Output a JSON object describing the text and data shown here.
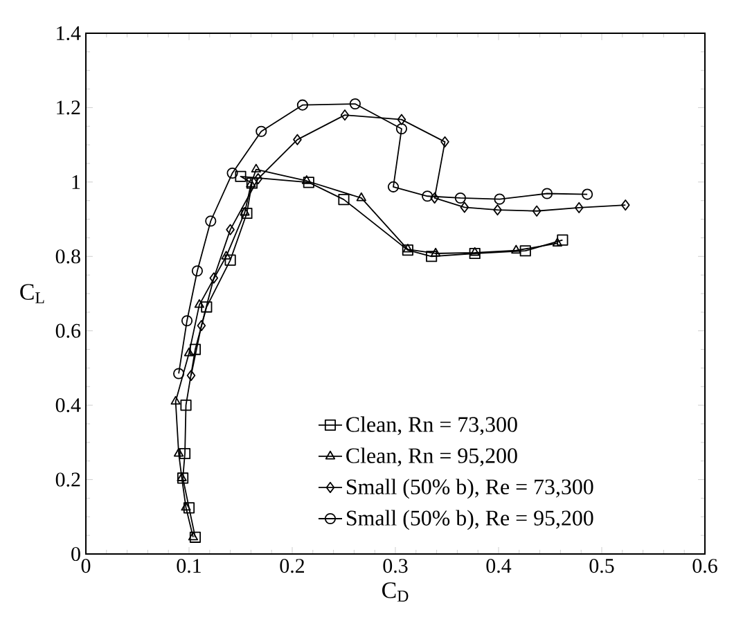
{
  "chart_data": {
    "type": "line",
    "xlabel": "C$_{D}$",
    "ylabel": "C$_{L}$",
    "xlim": [
      0,
      0.6
    ],
    "ylim": [
      0,
      1.4
    ],
    "xticks": [
      0,
      0.1,
      0.2,
      0.3,
      0.4,
      0.5,
      0.6
    ],
    "yticks": [
      0,
      0.2,
      0.4,
      0.6,
      0.8,
      1,
      1.2,
      1.4
    ],
    "grid": false,
    "legend": "bottom",
    "series": [
      {
        "name": "Clean, Rn = 73,300",
        "color": "#000000",
        "marker": "square",
        "x": [
          0.106,
          0.1,
          0.094,
          0.096,
          0.097,
          0.106,
          0.117,
          0.14,
          0.156,
          0.161,
          0.15,
          0.216,
          0.25,
          0.312,
          0.335,
          0.377,
          0.426,
          0.462
        ],
        "values": [
          0.045,
          0.124,
          0.204,
          0.27,
          0.4,
          0.55,
          0.664,
          0.79,
          0.916,
          0.997,
          1.015,
          0.999,
          0.953,
          0.817,
          0.8,
          0.808,
          0.815,
          0.844
        ]
      },
      {
        "name": "Clean, Rn = 95,200",
        "color": "#000000",
        "marker": "triangle",
        "x": [
          0.104,
          0.097,
          0.093,
          0.09,
          0.087,
          0.1,
          0.11,
          0.136,
          0.154,
          0.16,
          0.165,
          0.214,
          0.267,
          0.312,
          0.339,
          0.377,
          0.417,
          0.457
        ],
        "values": [
          0.045,
          0.125,
          0.204,
          0.27,
          0.41,
          0.54,
          0.67,
          0.8,
          0.918,
          0.994,
          1.034,
          1.003,
          0.957,
          0.819,
          0.808,
          0.81,
          0.816,
          0.835
        ]
      },
      {
        "name": "Small (50% b), Re = 73,300",
        "color": "#000000",
        "marker": "diamond",
        "x": [
          0.102,
          0.112,
          0.124,
          0.14,
          0.167,
          0.205,
          0.251,
          0.306,
          0.348,
          0.338,
          0.367,
          0.399,
          0.437,
          0.478,
          0.523
        ],
        "values": [
          0.48,
          0.614,
          0.742,
          0.872,
          1.009,
          1.114,
          1.18,
          1.168,
          1.108,
          0.957,
          0.932,
          0.925,
          0.922,
          0.931,
          0.938
        ]
      },
      {
        "name": "Small (50% b), Re = 95,200",
        "color": "#000000",
        "marker": "circle",
        "x": [
          0.09,
          0.098,
          0.108,
          0.121,
          0.142,
          0.17,
          0.21,
          0.261,
          0.306,
          0.298,
          0.331,
          0.363,
          0.401,
          0.447,
          0.486
        ],
        "values": [
          0.485,
          0.627,
          0.761,
          0.895,
          1.024,
          1.136,
          1.207,
          1.21,
          1.143,
          0.987,
          0.962,
          0.957,
          0.954,
          0.969,
          0.967
        ]
      }
    ]
  }
}
